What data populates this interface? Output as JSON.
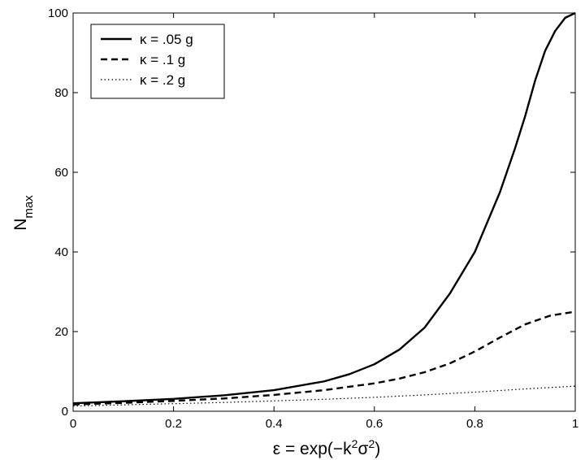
{
  "chart_data": {
    "type": "line",
    "title": "",
    "xlabel": {
      "prefix": "ε = exp(−k",
      "sup1": "2",
      "mid": "σ",
      "sup2": "2",
      "suffix": ")"
    },
    "ylabel": {
      "main": "N",
      "sub": "max"
    },
    "xlim": [
      0,
      1
    ],
    "ylim": [
      0,
      100
    ],
    "xticks": [
      "0",
      "0.2",
      "0.4",
      "0.6",
      "0.8",
      "1"
    ],
    "yticks": [
      "0",
      "20",
      "40",
      "60",
      "80",
      "100"
    ],
    "grid": false,
    "legend_position": "top-left",
    "series": [
      {
        "name": "κ = .05 g",
        "style": "solid",
        "color": "#000000",
        "x": [
          0,
          0.1,
          0.2,
          0.3,
          0.4,
          0.5,
          0.55,
          0.6,
          0.65,
          0.7,
          0.75,
          0.8,
          0.85,
          0.88,
          0.9,
          0.92,
          0.94,
          0.96,
          0.98,
          1.0
        ],
        "y": [
          2.0,
          2.5,
          3.1,
          4.0,
          5.3,
          7.5,
          9.3,
          11.8,
          15.5,
          21.0,
          29.5,
          40.0,
          55.0,
          66.0,
          74.0,
          83.0,
          90.5,
          95.5,
          98.8,
          100.0
        ]
      },
      {
        "name": "κ = .1 g",
        "style": "dashed",
        "color": "#000000",
        "x": [
          0,
          0.1,
          0.2,
          0.3,
          0.4,
          0.5,
          0.6,
          0.65,
          0.7,
          0.75,
          0.8,
          0.85,
          0.9,
          0.95,
          1.0
        ],
        "y": [
          1.7,
          2.1,
          2.6,
          3.2,
          4.1,
          5.3,
          7.0,
          8.2,
          9.8,
          12.0,
          15.0,
          18.5,
          21.8,
          24.0,
          25.0
        ]
      },
      {
        "name": "κ = .2 g",
        "style": "dotted",
        "color": "#000000",
        "x": [
          0,
          0.1,
          0.2,
          0.3,
          0.4,
          0.5,
          0.6,
          0.7,
          0.8,
          0.9,
          1.0
        ],
        "y": [
          1.3,
          1.6,
          1.9,
          2.2,
          2.6,
          3.0,
          3.5,
          4.1,
          4.8,
          5.6,
          6.3
        ]
      }
    ]
  }
}
